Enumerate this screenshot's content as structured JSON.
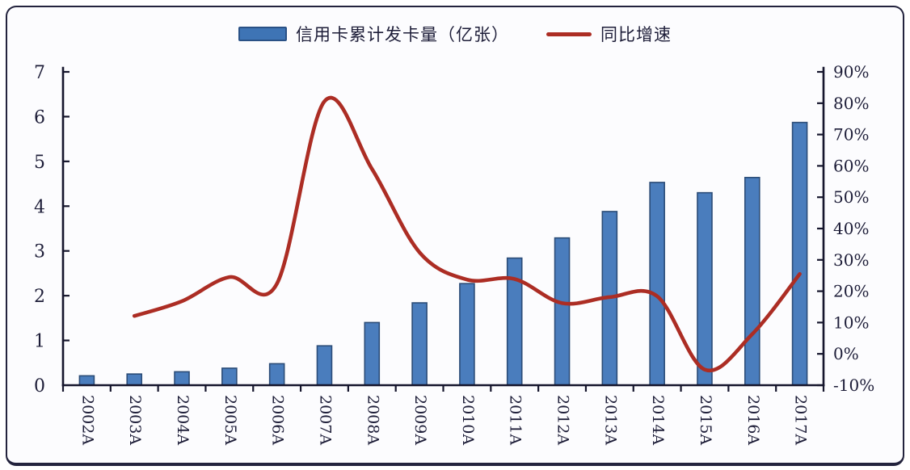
{
  "colors": {
    "bar_fill": "#4a7dbd",
    "bar_border": "#2b4c77",
    "line": "#ac2d24",
    "axis": "#15152c",
    "text": "#1d1d38",
    "panel_background": "#fcfcfe",
    "panel_border": "#23233d"
  },
  "legend": {
    "bar_label": "信用卡累计发卡量（亿张）",
    "line_label": "同比增速"
  },
  "chart_data": {
    "type": "bar",
    "subtype": "bar+line dual-axis combo",
    "title": "",
    "xlabel": "",
    "ylabel_left": "",
    "ylabel_right": "",
    "grid": false,
    "legend_position": "top-center",
    "categories": [
      "2002A",
      "2003A",
      "2004A",
      "2005A",
      "2006A",
      "2007A",
      "2008A",
      "2009A",
      "2010A",
      "2011A",
      "2012A",
      "2013A",
      "2014A",
      "2015A",
      "2016A",
      "2017A"
    ],
    "series": [
      {
        "name": "信用卡累计发卡量（亿张）",
        "type": "bar",
        "axis": "left",
        "unit": "亿张",
        "values": [
          0.21,
          0.25,
          0.3,
          0.38,
          0.48,
          0.88,
          1.4,
          1.84,
          2.27,
          2.84,
          3.29,
          3.88,
          4.53,
          4.3,
          4.64,
          5.87
        ]
      },
      {
        "name": "同比增速",
        "type": "line",
        "axis": "right",
        "unit": "%",
        "values": [
          null,
          12.1,
          16.8,
          24.5,
          22.4,
          80.6,
          59.0,
          32.4,
          23.7,
          23.9,
          16.2,
          18.1,
          18.4,
          -5.0,
          6.3,
          25.5
        ]
      }
    ],
    "left_axis": {
      "min": 0,
      "max": 7,
      "step": 1,
      "tick_labels": [
        "0",
        "1",
        "2",
        "3",
        "4",
        "5",
        "6",
        "7"
      ]
    },
    "right_axis": {
      "min": -10,
      "max": 90,
      "step": 10,
      "tick_labels": [
        "-10%",
        "0%",
        "10%",
        "20%",
        "30%",
        "40%",
        "50%",
        "60%",
        "70%",
        "80%",
        "90%"
      ]
    }
  }
}
